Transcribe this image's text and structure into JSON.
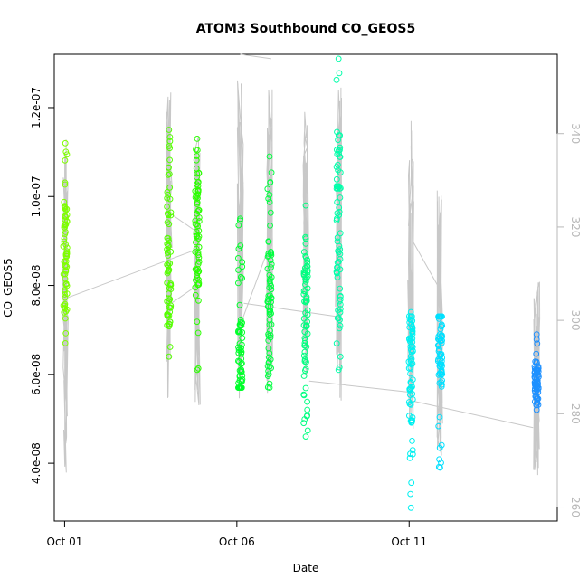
{
  "chart_data": {
    "type": "scatter",
    "title": "ATOM3 Southbound CO_GEOS5",
    "xlabel": "Date",
    "ylabel": "CO_GEOS5",
    "x_ticks": [
      {
        "label": "Oct 01",
        "day": 1
      },
      {
        "label": "Oct 06",
        "day": 6
      },
      {
        "label": "Oct 11",
        "day": 11
      }
    ],
    "xlim": [
      0.7,
      15.3
    ],
    "ylim": [
      2.7e-08,
      1.32e-07
    ],
    "y_ticks": [
      4e-08,
      6e-08,
      8e-08,
      1e-07,
      1.2e-07
    ],
    "y_tick_labels": [
      "4.0e-08",
      "6.0e-08",
      "8.0e-08",
      "1.0e-07",
      "1.2e-07"
    ],
    "y2lim": [
      257,
      357
    ],
    "y2_ticks": [
      260,
      280,
      300,
      320,
      340
    ],
    "y2_tick_labels": [
      "260",
      "280",
      "300",
      "320",
      "340"
    ],
    "grid": false,
    "line_color": "#c8c8c8",
    "series": [
      {
        "day": 1.02,
        "min": 6.7e-08,
        "max": 1.12e-07,
        "center": 8.6e-08,
        "color": "#7fff00"
      },
      {
        "day": 4.03,
        "min": 6.4e-08,
        "max": 1.15e-07,
        "center": 8.6e-08,
        "color": "#55ff00"
      },
      {
        "day": 4.85,
        "min": 6.1e-08,
        "max": 1.13e-07,
        "center": 9.5e-08,
        "color": "#2bff00"
      },
      {
        "day": 6.1,
        "min": 5.7e-08,
        "max": 9.5e-08,
        "center": 6.1e-08,
        "color": "#00ff2b"
      },
      {
        "day": 6.95,
        "min": 5.7e-08,
        "max": 1.09e-07,
        "center": 7.5e-08,
        "color": "#00ff40"
      },
      {
        "day": 8.0,
        "min": 4.6e-08,
        "max": 9.8e-08,
        "center": 7.5e-08,
        "color": "#00ff80"
      },
      {
        "day": 8.95,
        "min": 6.1e-08,
        "max": 1.31e-07,
        "center": 9e-08,
        "color": "#00ffaa"
      },
      {
        "day": 11.05,
        "min": 3e-08,
        "max": 7.4e-08,
        "center": 6e-08,
        "color": "#00f0f0"
      },
      {
        "day": 11.9,
        "min": 3.9e-08,
        "max": 7.3e-08,
        "center": 6.5e-08,
        "color": "#00e0ff"
      },
      {
        "day": 14.7,
        "min": 5.2e-08,
        "max": 6.9e-08,
        "center": 5.8e-08,
        "color": "#1e90ff"
      }
    ],
    "altitude_segments": [
      {
        "day": 1.02,
        "min": 267,
        "max": 339
      },
      {
        "day": 4.03,
        "min": 283,
        "max": 349
      },
      {
        "day": 4.85,
        "min": 280,
        "max": 340
      },
      {
        "day": 6.1,
        "min": 283,
        "max": 352
      },
      {
        "day": 6.95,
        "min": 284,
        "max": 352
      },
      {
        "day": 8.0,
        "min": 288,
        "max": 346
      },
      {
        "day": 8.95,
        "min": 282,
        "max": 350
      },
      {
        "day": 11.05,
        "min": 276,
        "max": 345
      },
      {
        "day": 11.9,
        "min": 271,
        "max": 333
      },
      {
        "day": 14.7,
        "min": 266,
        "max": 310
      }
    ],
    "connector_lines": [
      [
        [
          1.0,
          7.7e-08
        ],
        [
          4.8,
          8.8e-08
        ]
      ],
      [
        [
          4.1,
          7.6e-08
        ],
        [
          4.85,
          8e-08
        ]
      ],
      [
        [
          6.05,
          7e-08
        ],
        [
          6.9,
          8.8e-08
        ]
      ],
      [
        [
          6.1,
          1.32e-07
        ],
        [
          7.0,
          1.31e-07
        ]
      ],
      [
        [
          6.2,
          7.6e-08
        ],
        [
          8.9,
          7.3e-08
        ]
      ],
      [
        [
          8.1,
          5.85e-08
        ],
        [
          11.0,
          5.6e-08
        ]
      ],
      [
        [
          11.1,
          5.4e-08
        ],
        [
          14.6,
          4.8e-08
        ]
      ],
      [
        [
          11.1,
          9e-08
        ],
        [
          11.9,
          7.9e-08
        ]
      ],
      [
        [
          4.1,
          9.6e-08
        ],
        [
          4.85,
          9.2e-08
        ]
      ]
    ]
  }
}
